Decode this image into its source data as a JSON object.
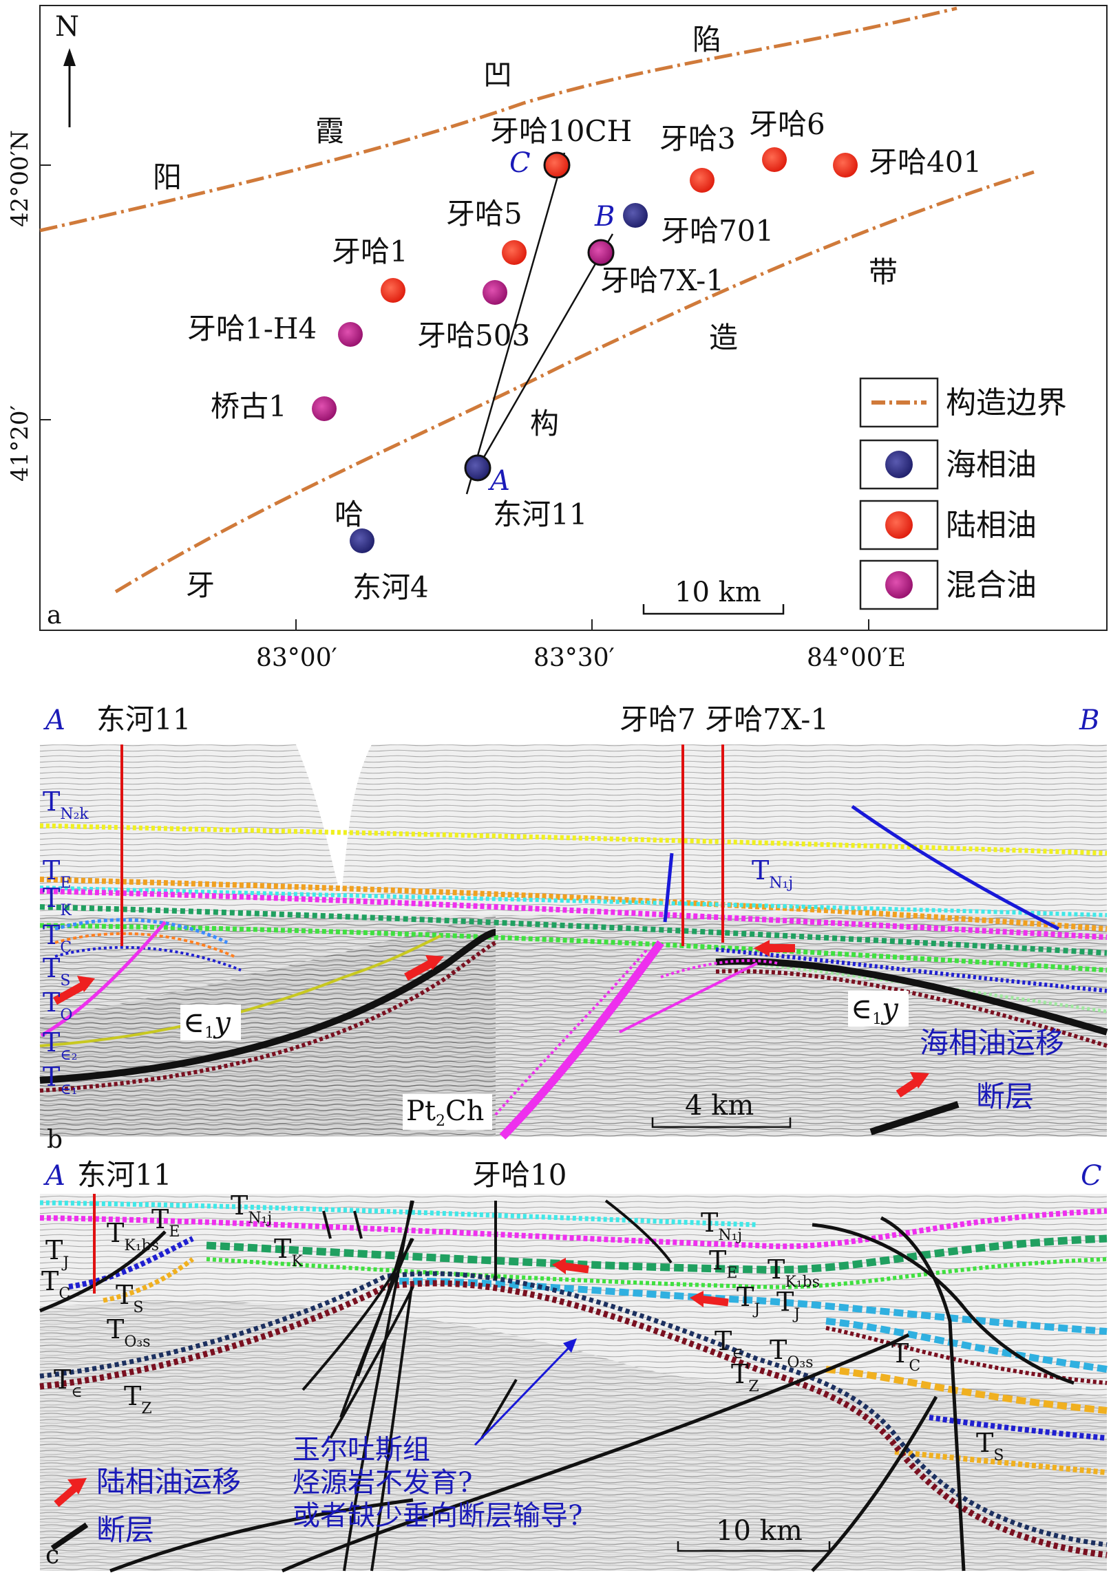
{
  "map": {
    "panel_label": "a",
    "north": "N",
    "lat_labels": [
      "42°00′N",
      "41°20′"
    ],
    "lon_labels": [
      "83°00′",
      "83°30′",
      "84°00′E"
    ],
    "region_chars": [
      "阳",
      "霞",
      "凹",
      "陷",
      "牙",
      "哈",
      "构",
      "造",
      "带"
    ],
    "scale": "10 km",
    "section_points": [
      "A",
      "B",
      "C"
    ],
    "wells": [
      {
        "name": "牙哈10CH",
        "type": "terrestrial"
      },
      {
        "name": "牙哈3",
        "type": "terrestrial"
      },
      {
        "name": "牙哈6",
        "type": "terrestrial"
      },
      {
        "name": "牙哈401",
        "type": "terrestrial"
      },
      {
        "name": "牙哈5",
        "type": "terrestrial"
      },
      {
        "name": "牙哈701",
        "type": "marine"
      },
      {
        "name": "牙哈1",
        "type": "terrestrial"
      },
      {
        "name": "牙哈7X-1",
        "type": "mixed"
      },
      {
        "name": "牙哈1-H4",
        "type": "mixed"
      },
      {
        "name": "牙哈503",
        "type": "mixed"
      },
      {
        "name": "桥古1",
        "type": "mixed"
      },
      {
        "name": "东河11",
        "type": "marine"
      },
      {
        "name": "东河4",
        "type": "marine"
      }
    ],
    "legend": [
      {
        "label": "构造边界",
        "symbol": "boundary",
        "color": "#d07a3a"
      },
      {
        "label": "海相油",
        "symbol": "marine",
        "color": "#2a2a88"
      },
      {
        "label": "陆相油",
        "symbol": "terrestrial",
        "color": "#ee3322"
      },
      {
        "label": "混合油",
        "symbol": "mixed",
        "color": "#b0208a"
      }
    ]
  },
  "section_b": {
    "panel_label": "b",
    "left_end": "A",
    "right_end": "B",
    "wells": [
      "东河11",
      "牙哈7 牙哈7X-1"
    ],
    "horizons": [
      {
        "base": "T",
        "sub": "N₂k"
      },
      {
        "base": "T",
        "sub": "E"
      },
      {
        "base": "T",
        "sub": "K"
      },
      {
        "base": "T",
        "sub": "C"
      },
      {
        "base": "T",
        "sub": "S"
      },
      {
        "base": "T",
        "sub": "O"
      },
      {
        "base": "T",
        "sub": "∈₂"
      },
      {
        "base": "T",
        "sub": "∈₁"
      },
      {
        "base": "T",
        "sub": "N₁j"
      }
    ],
    "strata": [
      {
        "base": "∈",
        "sub": "1",
        "rest": "y"
      },
      {
        "base": "∈",
        "sub": "1",
        "rest": "y"
      },
      {
        "base": "Pt",
        "sub": "2",
        "rest": "Ch"
      }
    ],
    "legend": [
      "海相油运移",
      "断层"
    ],
    "scale": "4 km"
  },
  "section_c": {
    "panel_label": "c",
    "left_end": "A",
    "left_well": "东河11",
    "right_end": "C",
    "well": "牙哈10",
    "horizons": [
      {
        "base": "T",
        "sub": "E"
      },
      {
        "base": "T",
        "sub": "N₁j"
      },
      {
        "base": "T",
        "sub": "K₁bs"
      },
      {
        "base": "T",
        "sub": "J"
      },
      {
        "base": "T",
        "sub": "K"
      },
      {
        "base": "T",
        "sub": "C"
      },
      {
        "base": "T",
        "sub": "S"
      },
      {
        "base": "T",
        "sub": "O₃s"
      },
      {
        "base": "T",
        "sub": "∈"
      },
      {
        "base": "T",
        "sub": "Z"
      },
      {
        "base": "T",
        "sub": "N₁j"
      },
      {
        "base": "T",
        "sub": "E"
      },
      {
        "base": "T",
        "sub": "K₁bs"
      },
      {
        "base": "T",
        "sub": "J"
      },
      {
        "base": "T",
        "sub": "J"
      },
      {
        "base": "T",
        "sub": "∈"
      },
      {
        "base": "T",
        "sub": "O₃s"
      },
      {
        "base": "T",
        "sub": "C"
      },
      {
        "base": "T",
        "sub": "Z"
      },
      {
        "base": "T",
        "sub": "S"
      }
    ],
    "annotation": [
      "玉尔吐斯组",
      "烃源岩不发育?",
      "或者缺少垂向断层输导?"
    ],
    "legend": [
      "陆相油运移",
      "断层"
    ],
    "scale": "10 km"
  }
}
